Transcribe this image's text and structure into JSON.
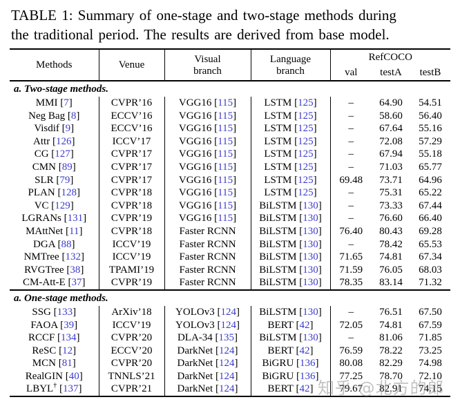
{
  "title": {
    "line1": "TABLE 1: Summary of one-stage and two-stage methods during",
    "line2": "the traditional period. The results are derived from base model."
  },
  "colors": {
    "citation_blue": "#3b3bcd",
    "text_black": "#000000",
    "watermark_gray": "#878787"
  },
  "header": {
    "methods": "Methods",
    "venue": "Venue",
    "visual_branch": "Visual\nbranch",
    "language_branch": "Language\nbranch",
    "refcoco": "RefCOCO",
    "val": "val",
    "testA": "testA",
    "testB": "testB"
  },
  "watermark": "知乎 @北方的郎",
  "table": {
    "sections": [
      {
        "label": "a. Two-stage methods.",
        "rows": [
          {
            "method": {
              "text": "MMI",
              "cite": "7"
            },
            "venue": "CVPR’16",
            "visual": {
              "text": "VGG16",
              "cite": "115"
            },
            "language": {
              "text": "LSTM",
              "cite": "125"
            },
            "val": "–",
            "testA": "64.90",
            "testB": "54.51"
          },
          {
            "method": {
              "text": "Neg Bag",
              "cite": "8"
            },
            "venue": "ECCV’16",
            "visual": {
              "text": "VGG16",
              "cite": "115"
            },
            "language": {
              "text": "LSTM",
              "cite": "125"
            },
            "val": "–",
            "testA": "58.60",
            "testB": "56.40"
          },
          {
            "method": {
              "text": "Visdif",
              "cite": "9"
            },
            "venue": "ECCV’16",
            "visual": {
              "text": "VGG16",
              "cite": "115"
            },
            "language": {
              "text": "LSTM",
              "cite": "125"
            },
            "val": "–",
            "testA": "67.64",
            "testB": "55.16"
          },
          {
            "method": {
              "text": "Attr",
              "cite": "126"
            },
            "venue": "ICCV’17",
            "visual": {
              "text": "VGG16",
              "cite": "115"
            },
            "language": {
              "text": "LSTM",
              "cite": "125"
            },
            "val": "–",
            "testA": "72.08",
            "testB": "57.29"
          },
          {
            "method": {
              "text": "CG",
              "cite": "127"
            },
            "venue": "CVPR’17",
            "visual": {
              "text": "VGG16",
              "cite": "115"
            },
            "language": {
              "text": "LSTM",
              "cite": "125"
            },
            "val": "–",
            "testA": "67.94",
            "testB": "55.18"
          },
          {
            "method": {
              "text": "CMN",
              "cite": "89"
            },
            "venue": "CVPR’17",
            "visual": {
              "text": "VGG16",
              "cite": "115"
            },
            "language": {
              "text": "LSTM",
              "cite": "125"
            },
            "val": "–",
            "testA": "71.03",
            "testB": "65.77"
          },
          {
            "method": {
              "text": "SLR",
              "cite": "79"
            },
            "venue": "CVPR’17",
            "visual": {
              "text": "VGG16",
              "cite": "115"
            },
            "language": {
              "text": "LSTM",
              "cite": "125"
            },
            "val": "69.48",
            "testA": "73.71",
            "testB": "64.96"
          },
          {
            "method": {
              "text": "PLAN",
              "cite": "128"
            },
            "venue": "CVPR’18",
            "visual": {
              "text": "VGG16",
              "cite": "115"
            },
            "language": {
              "text": "LSTM",
              "cite": "125"
            },
            "val": "–",
            "testA": "75.31",
            "testB": "65.22"
          },
          {
            "method": {
              "text": "VC",
              "cite": "129"
            },
            "venue": "CVPR’18",
            "visual": {
              "text": "VGG16",
              "cite": "115"
            },
            "language": {
              "text": "BiLSTM",
              "cite": "130"
            },
            "val": "–",
            "testA": "73.33",
            "testB": "67.44"
          },
          {
            "method": {
              "text": "LGRANs",
              "cite": "131"
            },
            "venue": "CVPR’19",
            "visual": {
              "text": "VGG16",
              "cite": "115"
            },
            "language": {
              "text": "BiLSTM",
              "cite": "130"
            },
            "val": "–",
            "testA": "76.60",
            "testB": "66.40"
          },
          {
            "method": {
              "text": "MAttNet",
              "cite": "11"
            },
            "venue": "CVPR’18",
            "visual": {
              "text": "Faster RCNN"
            },
            "language": {
              "text": "BiLSTM",
              "cite": "130"
            },
            "val": "76.40",
            "testA": "80.43",
            "testB": "69.28"
          },
          {
            "method": {
              "text": "DGA",
              "cite": "88"
            },
            "venue": "ICCV’19",
            "visual": {
              "text": "Faster RCNN"
            },
            "language": {
              "text": "BiLSTM",
              "cite": "130"
            },
            "val": "–",
            "testA": "78.42",
            "testB": "65.53"
          },
          {
            "method": {
              "text": "NMTree",
              "cite": "132"
            },
            "venue": "ICCV’19",
            "visual": {
              "text": "Faster RCNN"
            },
            "language": {
              "text": "BiLSTM",
              "cite": "130"
            },
            "val": "71.65",
            "testA": "74.81",
            "testB": "67.34"
          },
          {
            "method": {
              "text": "RVGTree",
              "cite": "38"
            },
            "venue": "TPAMI’19",
            "visual": {
              "text": "Faster RCNN"
            },
            "language": {
              "text": "BiLSTM",
              "cite": "130"
            },
            "val": "71.59",
            "testA": "76.05",
            "testB": "68.03"
          },
          {
            "method": {
              "text": "CM-Att-E",
              "cite": "37"
            },
            "venue": "CVPR’19",
            "visual": {
              "text": "Faster RCNN"
            },
            "language": {
              "text": "BiLSTM",
              "cite": "130"
            },
            "val": "78.35",
            "testA": "83.14",
            "testB": "71.32"
          }
        ]
      },
      {
        "label": "a. One-stage methods.",
        "rows": [
          {
            "method": {
              "text": "SSG",
              "cite": "133"
            },
            "venue": "ArXiv’18",
            "visual": {
              "text": "YOLOv3",
              "cite": "124"
            },
            "language": {
              "text": "BiLSTM",
              "cite": "130"
            },
            "val": "–",
            "testA": "76.51",
            "testB": "67.50"
          },
          {
            "method": {
              "text": "FAOA",
              "cite": "39"
            },
            "venue": "ICCV’19",
            "visual": {
              "text": "YOLOv3",
              "cite": "124"
            },
            "language": {
              "text": "BERT",
              "cite": "42"
            },
            "val": "72.05",
            "testA": "74.81",
            "testB": "67.59"
          },
          {
            "method": {
              "text": "RCCF",
              "cite": "134"
            },
            "venue": "CVPR’20",
            "visual": {
              "text": "DLA-34",
              "cite": "135"
            },
            "language": {
              "text": "BiLSTM",
              "cite": "130"
            },
            "val": "–",
            "testA": "81.06",
            "testB": "71.85"
          },
          {
            "method": {
              "text": "ReSC",
              "cite": "12"
            },
            "venue": "ECCV’20",
            "visual": {
              "text": "DarkNet",
              "cite": "124"
            },
            "language": {
              "text": "BERT",
              "cite": "42"
            },
            "val": "76.59",
            "testA": "78.22",
            "testB": "73.25"
          },
          {
            "method": {
              "text": "MCN",
              "cite": "81"
            },
            "venue": "CVPR’20",
            "visual": {
              "text": "DarkNet",
              "cite": "124"
            },
            "language": {
              "text": "BiGRU",
              "cite": "136"
            },
            "val": "80.08",
            "testA": "82.29",
            "testB": "74.98"
          },
          {
            "method": {
              "text": "RealGIN",
              "cite": "40"
            },
            "venue": "TNNLS’21",
            "visual": {
              "text": "DarkNet",
              "cite": "124"
            },
            "language": {
              "text": "BiGRU",
              "cite": "136"
            },
            "val": "77.25",
            "testA": "78.70",
            "testB": "72.10"
          },
          {
            "method": {
              "text": "LBYL",
              "sup": "†",
              "cite": "137"
            },
            "venue": "CVPR’21",
            "visual": {
              "text": "DarkNet",
              "cite": "124"
            },
            "language": {
              "text": "BERT",
              "cite": "42"
            },
            "val": "79.67",
            "testA": "82.91",
            "testB": "74.15"
          }
        ]
      }
    ]
  }
}
